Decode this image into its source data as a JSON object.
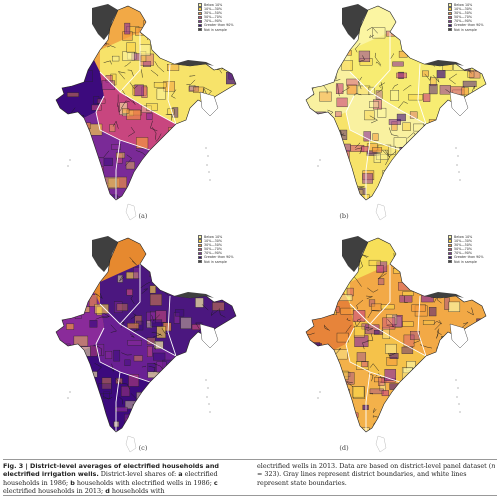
{
  "legend": {
    "items": [
      {
        "label": "Below 10%",
        "color": "#fbf5a2"
      },
      {
        "label": "10%—30%",
        "color": "#f9d34a"
      },
      {
        "label": "30%—50%",
        "color": "#f49a3c"
      },
      {
        "label": "50%—70%",
        "color": "#cf4c7a"
      },
      {
        "label": "70%—90%",
        "color": "#8a2b9a"
      },
      {
        "label": "Greater than 90%",
        "color": "#3c0a7d"
      },
      {
        "label": "Not in sample",
        "color": "#3f3f3f"
      }
    ]
  },
  "panels": [
    {
      "id": "a",
      "label": "(a)",
      "fills": {
        "outer": "#f2a946",
        "north": "#f7e36a",
        "centre": "#c8467f",
        "south": "#7a2a97",
        "west": "#3c0a7d"
      }
    },
    {
      "id": "b",
      "label": "(b)",
      "fills": {
        "outer": "#fbf5a2",
        "north": "#f7ec72",
        "centre": "#f9f1a0",
        "south": "#f7e36a",
        "west": "#f9f1a0"
      }
    },
    {
      "id": "c",
      "label": "(c)",
      "fills": {
        "outer": "#e6892f",
        "north": "#4b177f",
        "centre": "#6a2093",
        "south": "#3c0a7d",
        "west": "#8a2b9a"
      }
    },
    {
      "id": "d",
      "label": "(d)",
      "fills": {
        "outer": "#f7df59",
        "north": "#f2a946",
        "centre": "#f5c24a",
        "south": "#f3b14a",
        "west": "#e7843a"
      }
    }
  ],
  "caption": {
    "fig_label": "Fig. 3 | District-level averages of electrified households and electrified irrigation wells.",
    "part1": " District-level shares of: ",
    "a_letter": "a",
    "a_text": " electrified households in 1986; ",
    "b_letter": "b",
    "b_text": " households with electrified wells in 1986; ",
    "c_letter": "c",
    "c_text": " electrified households in 2013; ",
    "d_letter": "d",
    "d_text": " households with",
    "right_1": "electrified wells in 2013. Data are based on district-level panel dataset (",
    "right_n": "n",
    "right_2": " = 323). Gray lines represent district boundaries, and white lines represent state boundaries."
  }
}
